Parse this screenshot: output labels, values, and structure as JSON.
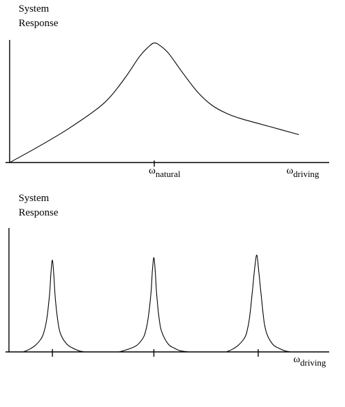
{
  "chart_data": [
    {
      "type": "line",
      "ylabel": "System Response",
      "ylabel_lines": [
        "System",
        "Response"
      ],
      "xlabel": "ωdriving",
      "x_symbol": "ω",
      "x_subscript": "driving",
      "tick_labels": [
        {
          "symbol": "ω",
          "subscript": "natural"
        }
      ],
      "xlim": [
        0,
        1.1
      ],
      "ylim": [
        0,
        1.0
      ],
      "peak": {
        "x": 0.5,
        "y": 0.9
      },
      "series": [
        {
          "x": [
            0,
            0.1,
            0.2,
            0.3,
            0.35,
            0.4,
            0.45,
            0.48,
            0.5,
            0.52,
            0.55,
            0.6,
            0.65,
            0.7,
            0.75,
            0.8,
            0.9,
            1.0
          ],
          "values": [
            0,
            0.12,
            0.25,
            0.4,
            0.5,
            0.64,
            0.8,
            0.87,
            0.9,
            0.88,
            0.82,
            0.67,
            0.53,
            0.43,
            0.37,
            0.33,
            0.27,
            0.21
          ]
        }
      ]
    },
    {
      "type": "line",
      "ylabel": "System Response",
      "ylabel_lines": [
        "System",
        "Response"
      ],
      "xlabel": "ωdriving",
      "x_symbol": "ω",
      "x_subscript": "driving",
      "xlim": [
        0,
        1.1
      ],
      "ylim": [
        0,
        1.0
      ],
      "ticks": [
        0.15,
        0.5,
        0.86
      ],
      "series": [
        {
          "x": [
            0.05,
            0.07,
            0.09,
            0.11,
            0.12,
            0.13,
            0.14,
            0.145,
            0.15,
            0.155,
            0.16,
            0.17,
            0.18,
            0.2,
            0.22,
            0.24,
            0.26
          ],
          "values": [
            0.0,
            0.02,
            0.05,
            0.1,
            0.15,
            0.25,
            0.45,
            0.62,
            0.72,
            0.6,
            0.42,
            0.22,
            0.13,
            0.06,
            0.03,
            0.01,
            0.0
          ]
        },
        {
          "x": [
            0.38,
            0.41,
            0.44,
            0.46,
            0.47,
            0.48,
            0.49,
            0.495,
            0.5,
            0.505,
            0.51,
            0.52,
            0.53,
            0.55,
            0.57,
            0.59,
            0.62
          ],
          "values": [
            0.0,
            0.02,
            0.05,
            0.1,
            0.15,
            0.26,
            0.46,
            0.64,
            0.74,
            0.62,
            0.44,
            0.23,
            0.14,
            0.06,
            0.03,
            0.01,
            0.0
          ]
        },
        {
          "x": [
            0.75,
            0.77,
            0.79,
            0.81,
            0.82,
            0.83,
            0.84,
            0.848,
            0.855,
            0.862,
            0.87,
            0.88,
            0.89,
            0.91,
            0.93,
            0.95,
            0.97
          ],
          "values": [
            0.0,
            0.02,
            0.05,
            0.1,
            0.15,
            0.27,
            0.48,
            0.66,
            0.76,
            0.63,
            0.45,
            0.24,
            0.14,
            0.06,
            0.03,
            0.01,
            0.0
          ]
        }
      ]
    }
  ]
}
